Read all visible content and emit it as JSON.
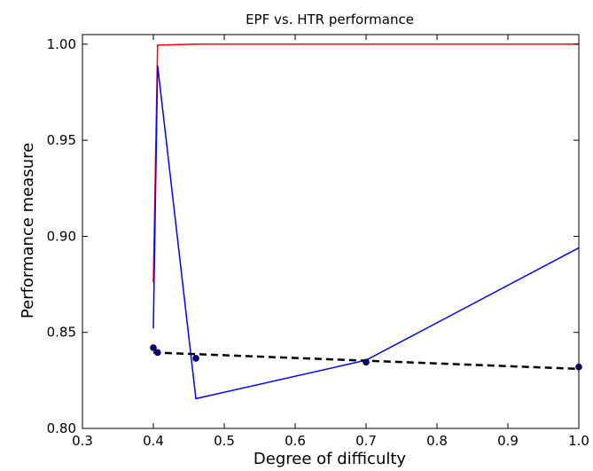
{
  "chart_data": {
    "type": "line",
    "title": "EPF vs. HTR performance",
    "xlabel": "Degree of difficulty",
    "ylabel": "Performance measure",
    "xlim": [
      0.3,
      1.0
    ],
    "ylim": [
      0.8,
      1.005
    ],
    "xticks": [
      "0.3",
      "0.4",
      "0.5",
      "0.6",
      "0.7",
      "0.8",
      "0.9",
      "1.0"
    ],
    "xtick_values": [
      0.3,
      0.4,
      0.5,
      0.6,
      0.7,
      0.8,
      0.9,
      1.0
    ],
    "yticks": [
      "0.80",
      "0.85",
      "0.90",
      "0.95",
      "1.00"
    ],
    "ytick_values": [
      0.8,
      0.85,
      0.9,
      0.95,
      1.0
    ],
    "grid": false,
    "series": [
      {
        "color": "#ff0000",
        "style": "solid",
        "x": [
          0.4,
          0.406,
          0.46,
          0.7,
          1.0
        ],
        "y": [
          0.876,
          0.9995,
          1.0,
          1.0,
          1.0
        ]
      },
      {
        "color": "#0000ff",
        "style": "solid",
        "x": [
          0.4,
          0.406,
          0.46,
          0.7,
          1.0
        ],
        "y": [
          0.852,
          0.989,
          0.8155,
          0.8355,
          0.894
        ]
      },
      {
        "color": "#000000",
        "style": "dashed",
        "x": [
          0.4,
          1.0
        ],
        "y": [
          0.8395,
          0.831
        ]
      }
    ],
    "points": {
      "color": "#00008b",
      "x": [
        0.4,
        0.406,
        0.46,
        0.7,
        1.0
      ],
      "y": [
        0.842,
        0.8395,
        0.8365,
        0.8345,
        0.832
      ]
    }
  }
}
